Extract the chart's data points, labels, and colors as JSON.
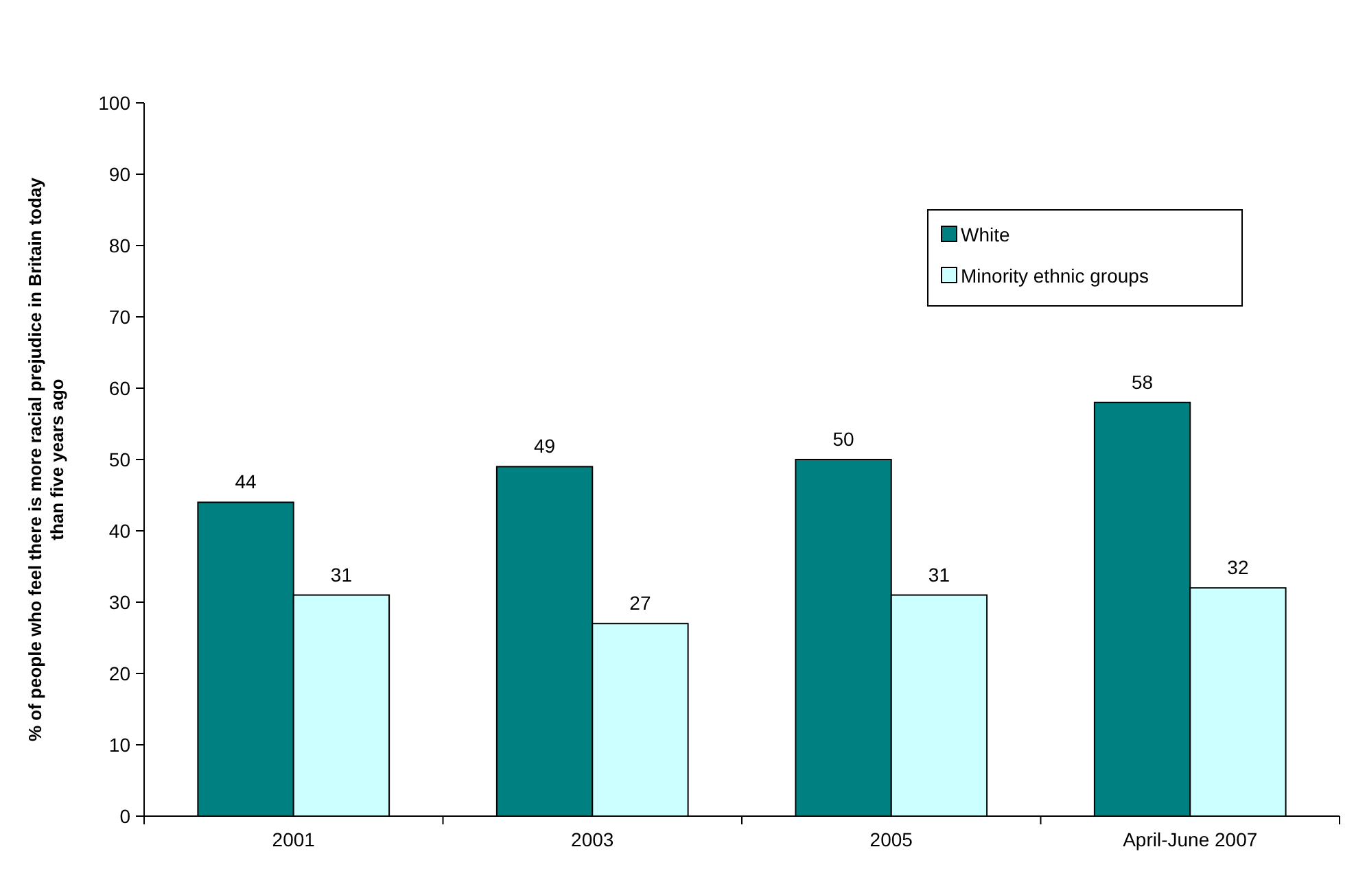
{
  "chart_data": {
    "type": "bar",
    "ylabel": "% of people who feel there is more racial prejudice in Britain today\nthan five years ago",
    "categories": [
      "2001",
      "2003",
      "2005",
      "April-June 2007"
    ],
    "series": [
      {
        "name": "White",
        "color": "#008080",
        "values": [
          44,
          49,
          50,
          58
        ]
      },
      {
        "name": "Minority ethnic groups",
        "color": "#ccffff",
        "values": [
          31,
          27,
          31,
          32
        ]
      }
    ],
    "ylim": [
      0,
      100
    ],
    "yticks": [
      0,
      10,
      20,
      30,
      40,
      50,
      60,
      70,
      80,
      90,
      100
    ],
    "data_labels": true,
    "legend": "top right",
    "grid": false
  }
}
